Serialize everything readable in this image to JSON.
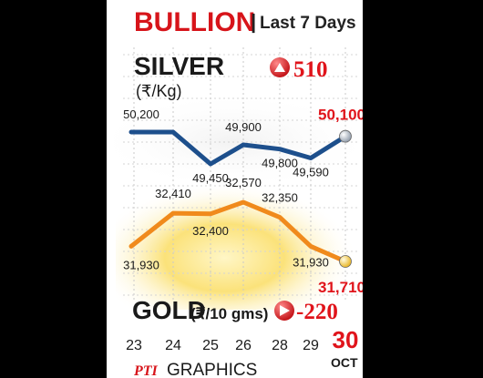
{
  "header": {
    "title": "BULLION",
    "separator": "|",
    "subtitle": "Last 7 Days"
  },
  "silver": {
    "label": "SILVER",
    "unit": "(₹/Kg)",
    "change": "510",
    "change_direction": "up",
    "icon": "up-arrow-icon"
  },
  "gold": {
    "label": "GOLD",
    "unit": "(₹/10 gms)",
    "change": "-220",
    "change_direction": "down",
    "icon": "right-arrow-icon"
  },
  "x_axis": {
    "ticks": [
      "23",
      "24",
      "25",
      "26",
      "28",
      "29",
      "30"
    ],
    "month": "OCT"
  },
  "credit": {
    "logo": "PTI",
    "text": "GRAPHICS"
  },
  "colors": {
    "title_red": "#d7141a",
    "silver_line": "#1d4f8c",
    "gold_line": "#f08a1c",
    "highlight_red": "#e0141b",
    "gold_glow": "#fbe27a"
  },
  "chart_data": [
    {
      "type": "line",
      "name": "silver",
      "x": [
        "23",
        "24",
        "25",
        "26",
        "28",
        "29",
        "30"
      ],
      "values": [
        50200,
        50200,
        49450,
        49900,
        49800,
        49590,
        50100
      ],
      "labels": [
        "50,200",
        "",
        "49,450",
        "49,900",
        "49,800",
        "49,590",
        "50,100"
      ],
      "ylim": [
        49300,
        50300
      ]
    },
    {
      "type": "line",
      "name": "gold",
      "x": [
        "23",
        "24",
        "25",
        "26",
        "28",
        "29",
        "30"
      ],
      "values": [
        31930,
        32410,
        32400,
        32570,
        32350,
        31930,
        31710
      ],
      "labels": [
        "31,930",
        "32,410",
        "32,400",
        "32,570",
        "32,350",
        "31,930",
        "31,710"
      ],
      "ylim": [
        31650,
        32650
      ]
    }
  ]
}
